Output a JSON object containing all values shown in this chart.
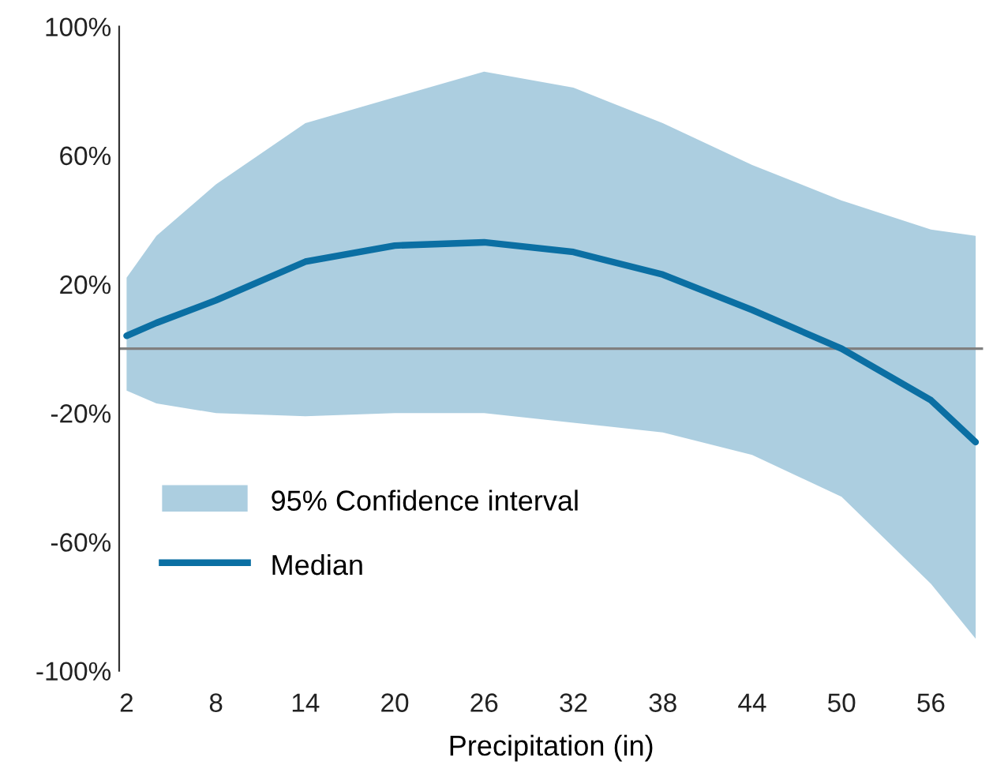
{
  "chart_data": {
    "type": "line",
    "xlabel": "Precipitation (in)",
    "annotations": [
      "95% Confidence interval"
    ],
    "x": [
      2,
      4,
      8,
      14,
      20,
      26,
      32,
      38,
      44,
      50,
      56,
      59
    ],
    "series": [
      {
        "name": "Median",
        "color": "#0b6fa3",
        "values": [
          4,
          8,
          15,
          27,
          32,
          33,
          30,
          23,
          12,
          0,
          -16,
          -29
        ],
        "lower": [
          -13,
          -17,
          -20,
          -21,
          -20,
          -20,
          -23,
          -26,
          -33,
          -46,
          -73,
          -90
        ],
        "upper": [
          22,
          35,
          51,
          70,
          78,
          86,
          81,
          70,
          57,
          46,
          37,
          35
        ]
      }
    ],
    "xlim": [
      1.5,
      59.5
    ],
    "xticks": [
      2,
      8,
      14,
      20,
      26,
      32,
      38,
      44,
      50,
      56
    ],
    "ylim": [
      -100,
      100
    ],
    "yticks": [
      {
        "value": -100,
        "label": "-100%"
      },
      {
        "value": -60,
        "label": "-60%"
      },
      {
        "value": -20,
        "label": "-20%"
      },
      {
        "value": 20,
        "label": "20%"
      },
      {
        "value": 60,
        "label": "60%"
      },
      {
        "value": 100,
        "label": "100%"
      }
    ],
    "ref_lines": [
      {
        "axis": "y",
        "value": 0,
        "color": "#808080"
      }
    ],
    "grid": false,
    "legend": "bottom left",
    "marker": "none",
    "line_style": "solid"
  }
}
